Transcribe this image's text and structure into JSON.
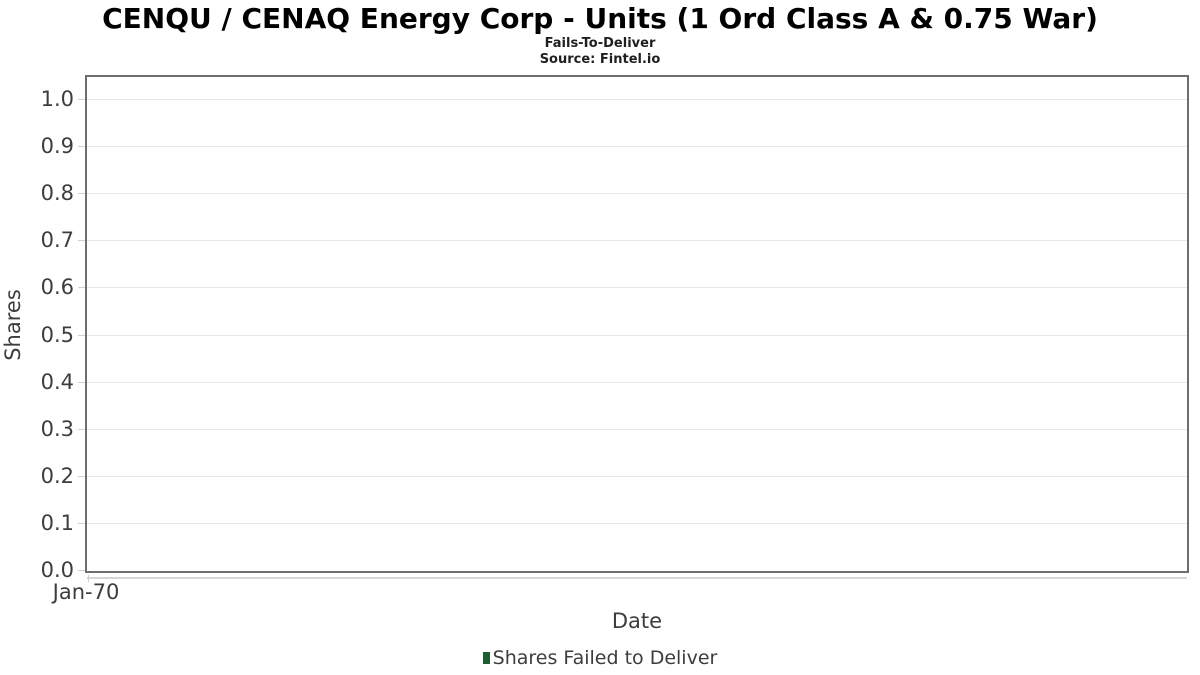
{
  "chart_data": {
    "type": "bar",
    "title": "CENQU / CENAQ Energy Corp - Units (1 Ord Class A & 0.75 War)",
    "subtitle": "Fails-To-Deliver",
    "source": "Source: Fintel.io",
    "xlabel": "Date",
    "ylabel": "Shares",
    "x_tick_labels": [
      "Jan-70"
    ],
    "y_ticks": [
      0.0,
      0.1,
      0.2,
      0.3,
      0.4,
      0.5,
      0.6,
      0.7,
      0.8,
      0.9,
      1.0
    ],
    "ylim": [
      0.0,
      1.05
    ],
    "grid": "horizontal-only",
    "legend_position": "bottom-center",
    "series": [
      {
        "name": "Shares Failed to Deliver",
        "color": "#1f5c33",
        "x": [],
        "values": []
      }
    ],
    "notes": "empty plot - no data points rendered"
  },
  "colors": {
    "background": "#ffffff",
    "plot_border": "#6e6e6e",
    "gridline": "#e8e8e8",
    "tick_mark": "#d0d0d0",
    "axis_text": "#3d3d3d",
    "title_text": "#000000",
    "legend_marker": "#1f5c33"
  }
}
